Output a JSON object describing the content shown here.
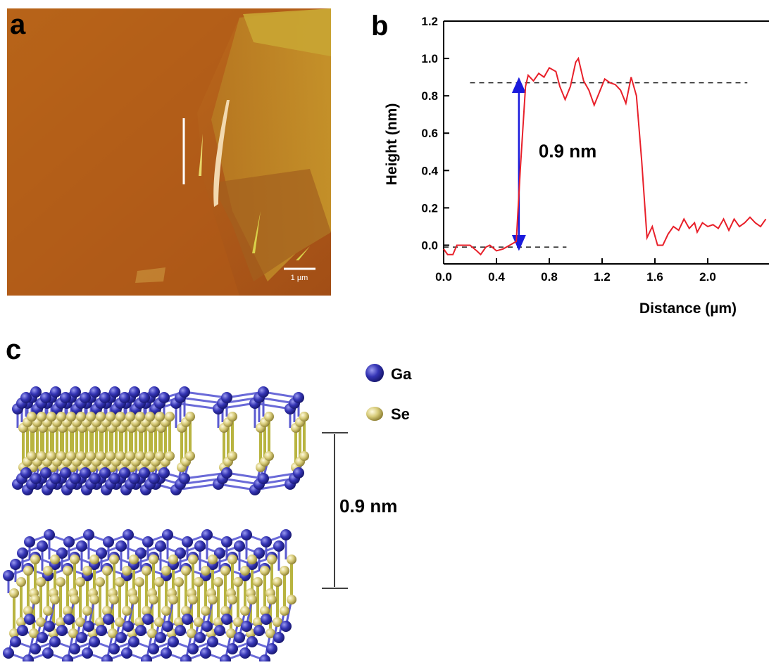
{
  "panel_labels": [
    "a",
    "b",
    "c"
  ],
  "afm_image": {
    "scale_bar": "1 µm"
  },
  "structure": {
    "legend": [
      "Ga",
      "Se"
    ],
    "spacing_label": "0.9 nm"
  },
  "chart_data": {
    "type": "line",
    "x_label": "Distance (µm)",
    "y_label": "Height (nm)",
    "annotation": "0.9 nm",
    "x": [
      0.0,
      0.03,
      0.07,
      0.1,
      0.15,
      0.2,
      0.25,
      0.28,
      0.32,
      0.35,
      0.4,
      0.45,
      0.5,
      0.55,
      0.58,
      0.62,
      0.64,
      0.68,
      0.72,
      0.76,
      0.8,
      0.85,
      0.88,
      0.92,
      0.96,
      1.0,
      1.02,
      1.06,
      1.1,
      1.14,
      1.18,
      1.22,
      1.26,
      1.3,
      1.34,
      1.38,
      1.42,
      1.46,
      1.5,
      1.54,
      1.58,
      1.62,
      1.66,
      1.7,
      1.74,
      1.78,
      1.82,
      1.86,
      1.9,
      1.92,
      1.96,
      2.0,
      2.04,
      2.08,
      2.12,
      2.16,
      2.2,
      2.24,
      2.28,
      2.32,
      2.36,
      2.4,
      2.44
    ],
    "series": [
      {
        "color": "#e8202a",
        "values": [
          -0.02,
          -0.05,
          -0.05,
          0.0,
          0.0,
          0.0,
          -0.03,
          -0.05,
          -0.01,
          0.0,
          -0.03,
          -0.02,
          0.0,
          0.02,
          0.4,
          0.85,
          0.91,
          0.88,
          0.92,
          0.9,
          0.95,
          0.93,
          0.85,
          0.78,
          0.85,
          0.98,
          1.0,
          0.88,
          0.83,
          0.75,
          0.82,
          0.89,
          0.87,
          0.86,
          0.83,
          0.76,
          0.9,
          0.8,
          0.45,
          0.04,
          0.1,
          0.0,
          0.0,
          0.06,
          0.1,
          0.08,
          0.14,
          0.09,
          0.12,
          0.07,
          0.12,
          0.1,
          0.11,
          0.09,
          0.14,
          0.08,
          0.14,
          0.1,
          0.12,
          0.15,
          0.12,
          0.1,
          0.14
        ]
      }
    ],
    "reference_lines": [
      {
        "y": 0.87,
        "x": [
          0.2,
          2.3
        ]
      },
      {
        "y": -0.01,
        "x": [
          0.0,
          0.93
        ]
      }
    ],
    "arrow": {
      "x": 0.57,
      "y": [
        0.0,
        0.87
      ],
      "color": "#1a1adc"
    },
    "xlim": [
      0,
      2.464
    ],
    "ylim": [
      -0.1,
      1.2
    ],
    "xticks": [
      {
        "value": 0,
        "label": "0.0"
      },
      0.4,
      0.8,
      1.2,
      1.6,
      {
        "value": 2,
        "label": "2.0"
      }
    ],
    "yticks": [
      {
        "value": 0,
        "label": "0.0"
      },
      0.2,
      0.4,
      0.6,
      0.8,
      {
        "value": 1,
        "label": "1.0"
      },
      1.2
    ]
  }
}
